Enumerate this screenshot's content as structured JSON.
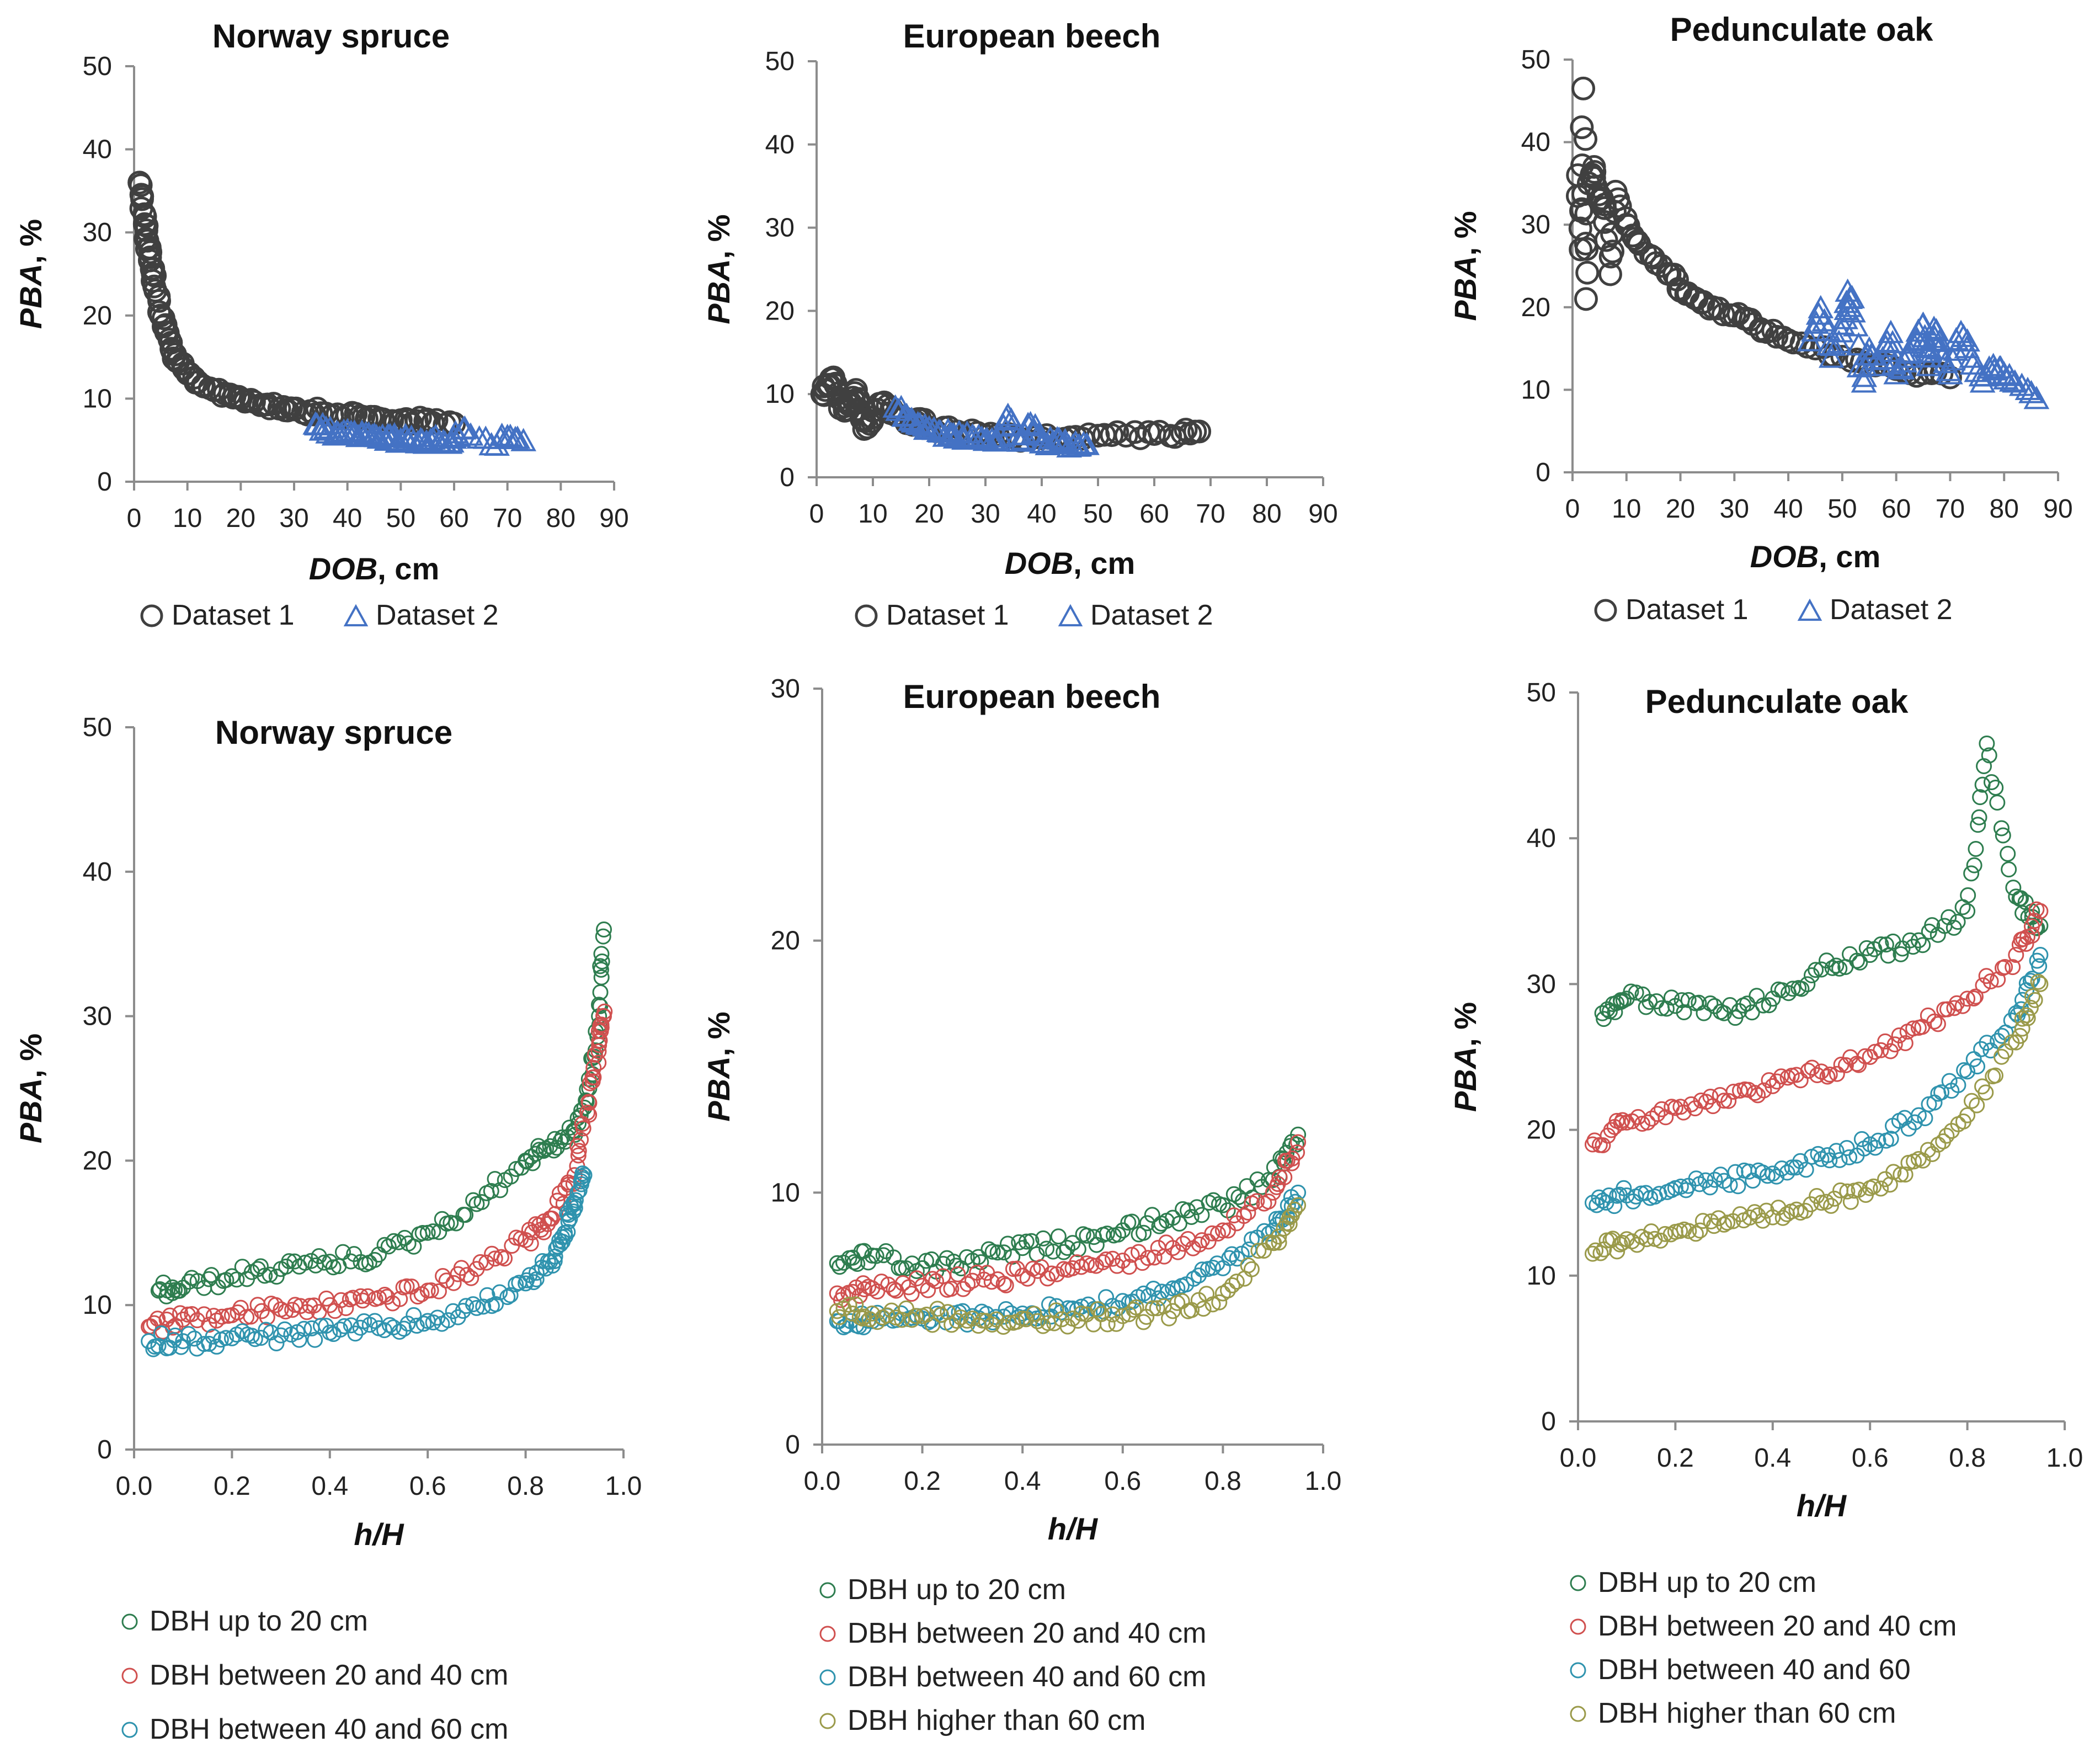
{
  "colors": {
    "axis": "#8c8c8c",
    "dataset1": "#404040",
    "dataset2": "#4472c4",
    "dbh20": "#2e7d4f",
    "dbh2040": "#d0504f",
    "dbh4060": "#2f93ae",
    "dbh60": "#9a9a4a"
  },
  "chart_data": [
    {
      "id": "spruce_dob",
      "type": "scatter",
      "title": "Norway spruce",
      "xlabel_italic": "DOB",
      "xlabel_rest": ", cm",
      "ylabel_italic": "PBA",
      "ylabel_rest": ", %",
      "xlim": [
        0,
        90
      ],
      "ylim": [
        0,
        50
      ],
      "xticks": [
        "0",
        "10",
        "20",
        "30",
        "40",
        "50",
        "60",
        "70",
        "80",
        "90"
      ],
      "yticks": [
        "0",
        "10",
        "20",
        "30",
        "40",
        "50"
      ],
      "series": [
        {
          "name": "Dataset 1",
          "marker": "circle",
          "color": "#404040",
          "x": [
            1,
            1.5,
            2,
            2.5,
            3,
            3.5,
            4,
            5,
            6,
            7,
            8,
            10,
            12,
            15,
            18,
            20,
            22,
            25,
            28,
            30,
            33,
            36,
            40,
            43,
            46,
            50,
            53,
            56,
            60
          ],
          "y": [
            36,
            34,
            31,
            29,
            27,
            25,
            23,
            20,
            18,
            16,
            14.5,
            13,
            12,
            11,
            10.5,
            10,
            9.8,
            9.3,
            9,
            8.7,
            8.5,
            8.2,
            8,
            7.8,
            7.6,
            7.4,
            7.3,
            7.1,
            7
          ]
        },
        {
          "name": "Dataset 2",
          "marker": "triangle",
          "color": "#4472c4",
          "x": [
            34,
            36,
            38,
            40,
            42,
            44,
            46,
            48,
            50,
            52,
            54,
            56,
            58,
            60,
            62,
            67,
            70,
            73
          ],
          "y": [
            7,
            6.5,
            6,
            6.2,
            5.5,
            5.8,
            5.3,
            5.6,
            5.1,
            5.4,
            5,
            5.2,
            4.9,
            5.3,
            6.5,
            4.5,
            5.5,
            5
          ]
        }
      ],
      "legend": [
        "Dataset 1",
        "Dataset 2"
      ]
    },
    {
      "id": "beech_dob",
      "type": "scatter",
      "title": "European beech",
      "xlabel_italic": "DOB",
      "xlabel_rest": ", cm",
      "ylabel_italic": "PBA",
      "ylabel_rest": ", %",
      "xlim": [
        0,
        90
      ],
      "ylim": [
        0,
        50
      ],
      "xticks": [
        "0",
        "10",
        "20",
        "30",
        "40",
        "50",
        "60",
        "70",
        "80",
        "90"
      ],
      "yticks": [
        "0",
        "10",
        "20",
        "30",
        "40",
        "50"
      ],
      "series": [
        {
          "name": "Dataset 1",
          "marker": "circle",
          "color": "#404040",
          "x": [
            1,
            2,
            3,
            4,
            5,
            6,
            7,
            8,
            9,
            10,
            12,
            14,
            16,
            18,
            20,
            25,
            30,
            35,
            40,
            45,
            50,
            55,
            60,
            65,
            68
          ],
          "y": [
            10,
            11,
            12,
            9.5,
            8,
            9,
            10.5,
            7,
            6,
            8,
            9,
            7.5,
            6.5,
            7,
            6,
            5.5,
            5,
            4.8,
            4.7,
            4.8,
            5,
            5,
            5.2,
            5.3,
            5.5
          ]
        },
        {
          "name": "Dataset 2",
          "marker": "triangle",
          "color": "#4472c4",
          "x": [
            14,
            16,
            18,
            20,
            22,
            24,
            26,
            28,
            30,
            32,
            34,
            36,
            38,
            40,
            42,
            44,
            46,
            48
          ],
          "y": [
            8.5,
            7.5,
            6.5,
            6,
            5.5,
            5.2,
            5,
            4.8,
            4.5,
            4.6,
            7.5,
            4.4,
            6.5,
            4.2,
            4.3,
            4.1,
            4.2,
            4
          ]
        }
      ],
      "legend": [
        "Dataset 1",
        "Dataset 2"
      ]
    },
    {
      "id": "oak_dob",
      "type": "scatter",
      "title": "Pedunculate oak",
      "xlabel_italic": "DOB",
      "xlabel_rest": ", cm",
      "ylabel_italic": "PBA",
      "ylabel_rest": ", %",
      "xlim": [
        0,
        90
      ],
      "ylim": [
        0,
        50
      ],
      "xticks": [
        "0",
        "10",
        "20",
        "30",
        "40",
        "50",
        "60",
        "70",
        "80",
        "90"
      ],
      "yticks": [
        "0",
        "10",
        "20",
        "30",
        "40",
        "50"
      ],
      "series": [
        {
          "name": "Dataset 1",
          "marker": "circle",
          "color": "#404040",
          "x": [
            1,
            1.5,
            2,
            2.5,
            3,
            4,
            5,
            6,
            7,
            8,
            10,
            12,
            15,
            18,
            20,
            23,
            26,
            30,
            33,
            36,
            40,
            45,
            50,
            55,
            60,
            65,
            70
          ],
          "y": [
            36,
            27,
            46.5,
            21,
            35,
            37,
            33,
            32,
            24,
            34,
            30,
            28,
            26,
            24,
            22,
            21,
            20,
            19,
            18.5,
            17,
            16,
            15,
            14,
            13,
            12.5,
            12,
            11.5
          ]
        },
        {
          "name": "Dataset 2",
          "marker": "triangle",
          "color": "#4472c4",
          "x": [
            44,
            46,
            48,
            50,
            51,
            52,
            54,
            55,
            57,
            59,
            60,
            62,
            64,
            65,
            66,
            67,
            68,
            70,
            72,
            74,
            76,
            78,
            80,
            82,
            86
          ],
          "y": [
            16,
            20,
            14,
            18,
            22,
            19.5,
            11,
            15,
            13,
            17,
            12,
            14,
            16,
            18,
            13,
            17.5,
            15,
            12,
            17,
            14,
            11,
            13,
            12,
            11,
            9
          ]
        }
      ],
      "legend": [
        "Dataset 1",
        "Dataset 2"
      ]
    },
    {
      "id": "spruce_hH",
      "type": "scatter",
      "title": "Norway spruce",
      "xlabel_italic": "h/H",
      "xlabel_rest": "",
      "ylabel_italic": "PBA",
      "ylabel_rest": ", %",
      "xlim": [
        0,
        1
      ],
      "ylim": [
        0,
        50
      ],
      "xticks": [
        "0.0",
        "0.2",
        "0.4",
        "0.6",
        "0.8",
        "1.0"
      ],
      "yticks": [
        "0",
        "10",
        "20",
        "30",
        "40",
        "50"
      ],
      "series": [
        {
          "name": "DBH up to 20 cm",
          "color": "#2e7d4f",
          "x": [
            0.05,
            0.1,
            0.2,
            0.3,
            0.4,
            0.5,
            0.6,
            0.7,
            0.8,
            0.85,
            0.9,
            0.93,
            0.95,
            0.96
          ],
          "y": [
            11,
            11.2,
            12,
            12.5,
            13,
            13.5,
            15,
            17,
            20,
            21,
            22,
            25,
            30,
            36
          ]
        },
        {
          "name": "DBH between 20 and 40 cm",
          "color": "#d0504f",
          "x": [
            0.03,
            0.1,
            0.2,
            0.3,
            0.4,
            0.5,
            0.6,
            0.7,
            0.8,
            0.85,
            0.9,
            0.93,
            0.95,
            0.96
          ],
          "y": [
            8.5,
            9,
            9.3,
            9.7,
            10,
            10.5,
            11,
            12.5,
            14.5,
            16,
            19,
            24,
            28,
            30
          ]
        },
        {
          "name": "DBH between 40 and 60 cm",
          "color": "#2f93ae",
          "x": [
            0.03,
            0.1,
            0.2,
            0.3,
            0.4,
            0.5,
            0.6,
            0.7,
            0.8,
            0.85,
            0.88,
            0.9,
            0.92
          ],
          "y": [
            7.5,
            7.5,
            7.7,
            7.9,
            8.1,
            8.4,
            8.9,
            9.8,
            11.5,
            13,
            15,
            17,
            19
          ]
        }
      ],
      "legend": [
        "DBH up to 20 cm",
        "DBH between 20 and 40 cm",
        "DBH between 40 and 60 cm"
      ]
    },
    {
      "id": "beech_hH",
      "type": "scatter",
      "title": "European beech",
      "xlabel_italic": "h/H",
      "xlabel_rest": "",
      "ylabel_italic": "PBA",
      "ylabel_rest": ", %",
      "xlim": [
        0,
        1
      ],
      "ylim": [
        0,
        30
      ],
      "xticks": [
        "0.0",
        "0.2",
        "0.4",
        "0.6",
        "0.8",
        "1.0"
      ],
      "yticks": [
        "0",
        "10",
        "20",
        "30"
      ],
      "series": [
        {
          "name": "DBH up to 20 cm",
          "color": "#2e7d4f",
          "x": [
            0.03,
            0.1,
            0.2,
            0.3,
            0.4,
            0.5,
            0.6,
            0.7,
            0.8,
            0.9,
            0.95
          ],
          "y": [
            7.2,
            7.5,
            7,
            7.3,
            7.8,
            8,
            8.5,
            9,
            9.5,
            10.5,
            12.3
          ]
        },
        {
          "name": "DBH between 20 and 40 cm",
          "color": "#d0504f",
          "x": [
            0.03,
            0.1,
            0.2,
            0.3,
            0.4,
            0.5,
            0.6,
            0.7,
            0.8,
            0.9,
            0.95
          ],
          "y": [
            6,
            6.2,
            6.3,
            6.5,
            6.7,
            7,
            7.3,
            7.8,
            8.5,
            10,
            12
          ]
        },
        {
          "name": "DBH between 40 and 60 cm",
          "color": "#2f93ae",
          "x": [
            0.03,
            0.1,
            0.2,
            0.3,
            0.4,
            0.5,
            0.6,
            0.7,
            0.8,
            0.9,
            0.95
          ],
          "y": [
            4.9,
            4.9,
            5,
            5.1,
            5.2,
            5.4,
            5.7,
            6.2,
            7,
            8.5,
            10
          ]
        },
        {
          "name": "DBH higher than 60 cm",
          "color": "#9a9a4a",
          "x": [
            0.03,
            0.1,
            0.2,
            0.3,
            0.4,
            0.5,
            0.6,
            0.7,
            0.8,
            0.9,
            0.95
          ],
          "y": [
            5.3,
            5.2,
            5.1,
            5,
            5,
            5,
            5.1,
            5.3,
            6,
            8,
            9.5
          ]
        }
      ],
      "legend": [
        "DBH up to 20 cm",
        "DBH between 20 and 40 cm",
        "DBH between 40 and 60 cm",
        "DBH higher than 60 cm"
      ]
    },
    {
      "id": "oak_hH",
      "type": "scatter",
      "title": "Pedunculate oak",
      "xlabel_italic": "h/H",
      "xlabel_rest": "",
      "ylabel_italic": "PBA",
      "ylabel_rest": ", %",
      "xlim": [
        0,
        1
      ],
      "ylim": [
        0,
        50
      ],
      "xticks": [
        "0.0",
        "0.2",
        "0.4",
        "0.6",
        "0.8",
        "1.0"
      ],
      "yticks": [
        "0",
        "10",
        "20",
        "30",
        "40",
        "50"
      ],
      "series": [
        {
          "name": "DBH up to 20 cm",
          "color": "#2e7d4f",
          "x": [
            0.05,
            0.1,
            0.2,
            0.3,
            0.4,
            0.5,
            0.6,
            0.7,
            0.8,
            0.84,
            0.9,
            0.95
          ],
          "y": [
            28,
            29,
            28.5,
            28,
            29,
            31,
            32,
            33,
            35,
            46.5,
            36,
            34
          ]
        },
        {
          "name": "DBH between 20 and 40 cm",
          "color": "#d0504f",
          "x": [
            0.03,
            0.1,
            0.2,
            0.3,
            0.4,
            0.5,
            0.6,
            0.7,
            0.8,
            0.9,
            0.95
          ],
          "y": [
            19,
            20.5,
            21.5,
            22,
            23,
            24,
            25,
            27,
            29,
            32,
            35
          ]
        },
        {
          "name": "DBH between 40 and 60 cm",
          "color": "#2f93ae",
          "x": [
            0.03,
            0.1,
            0.2,
            0.3,
            0.4,
            0.5,
            0.6,
            0.7,
            0.8,
            0.9,
            0.95
          ],
          "y": [
            15,
            15.5,
            16,
            16.5,
            17,
            18,
            19,
            21,
            24,
            28,
            32
          ]
        },
        {
          "name": "DBH higher than 60 cm",
          "color": "#9a9a4a",
          "x": [
            0.03,
            0.1,
            0.2,
            0.3,
            0.4,
            0.5,
            0.6,
            0.7,
            0.8,
            0.9,
            0.95
          ],
          "y": [
            11.5,
            12.5,
            13,
            13.5,
            14,
            15,
            16,
            18,
            21,
            26,
            30
          ]
        }
      ],
      "legend": [
        "DBH up to 20 cm",
        "DBH between 20 and 40 cm",
        "DBH between 40 and 60",
        "DBH higher than 60 cm"
      ]
    }
  ]
}
